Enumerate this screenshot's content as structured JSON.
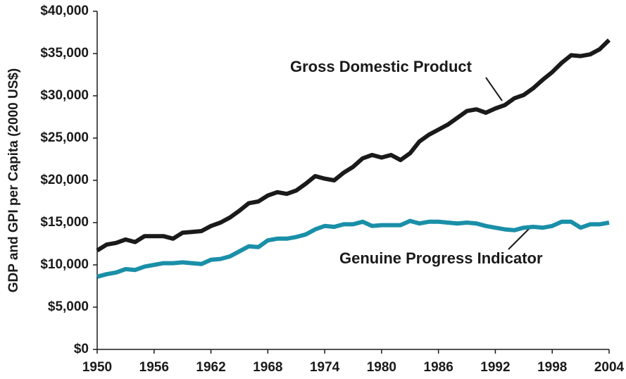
{
  "chart_data": {
    "type": "line",
    "ylabel": "GDP and GPI per Capita (2000 US$)",
    "x": [
      1950,
      1951,
      1952,
      1953,
      1954,
      1955,
      1956,
      1957,
      1958,
      1959,
      1960,
      1961,
      1962,
      1963,
      1964,
      1965,
      1966,
      1967,
      1968,
      1969,
      1970,
      1971,
      1972,
      1973,
      1974,
      1975,
      1976,
      1977,
      1978,
      1979,
      1980,
      1981,
      1982,
      1983,
      1984,
      1985,
      1986,
      1987,
      1988,
      1989,
      1990,
      1991,
      1992,
      1993,
      1994,
      1995,
      1996,
      1997,
      1998,
      1999,
      2000,
      2001,
      2002,
      2003,
      2004
    ],
    "series": [
      {
        "name": "Gross Domestic Product",
        "color": "#1a1a1a",
        "values": [
          11700,
          12400,
          12600,
          13000,
          12700,
          13400,
          13400,
          13400,
          13100,
          13800,
          13900,
          14000,
          14600,
          15000,
          15600,
          16400,
          17300,
          17500,
          18200,
          18600,
          18400,
          18800,
          19600,
          20500,
          20200,
          20000,
          20900,
          21600,
          22600,
          23000,
          22700,
          23000,
          22400,
          23200,
          24600,
          25400,
          26000,
          26600,
          27400,
          28200,
          28400,
          28000,
          28500,
          28900,
          29700,
          30100,
          30900,
          31900,
          32800,
          33900,
          34800,
          34700,
          34900,
          35500,
          36600
        ]
      },
      {
        "name": "Genuine Progress Indicator",
        "color": "#1a8fa8",
        "values": [
          8600,
          8900,
          9100,
          9500,
          9400,
          9800,
          10000,
          10200,
          10200,
          10300,
          10200,
          10100,
          10600,
          10700,
          11000,
          11600,
          12200,
          12100,
          12900,
          13100,
          13100,
          13300,
          13600,
          14200,
          14600,
          14500,
          14800,
          14800,
          15100,
          14600,
          14700,
          14700,
          14700,
          15200,
          14900,
          15100,
          15100,
          15000,
          14900,
          15000,
          14900,
          14600,
          14400,
          14200,
          14100,
          14400,
          14500,
          14400,
          14600,
          15100,
          15100,
          14400,
          14800,
          14800,
          15000
        ]
      }
    ],
    "xlim": [
      1950,
      2004
    ],
    "xticks": [
      1950,
      1956,
      1962,
      1968,
      1974,
      1980,
      1986,
      1992,
      1998,
      2004
    ],
    "ylim": [
      0,
      40000
    ],
    "yticks": [
      {
        "value": 0,
        "label": "$0"
      },
      {
        "value": 5000,
        "label": "$5,000"
      },
      {
        "value": 10000,
        "label": "$10,000"
      },
      {
        "value": 15000,
        "label": "$15,000"
      },
      {
        "value": 20000,
        "label": "$20,000"
      },
      {
        "value": 25000,
        "label": "$25,000"
      },
      {
        "value": 30000,
        "label": "$30,000"
      },
      {
        "value": 35000,
        "label": "$35,000"
      },
      {
        "value": 40000,
        "label": "$40,000"
      }
    ],
    "grid": false
  }
}
